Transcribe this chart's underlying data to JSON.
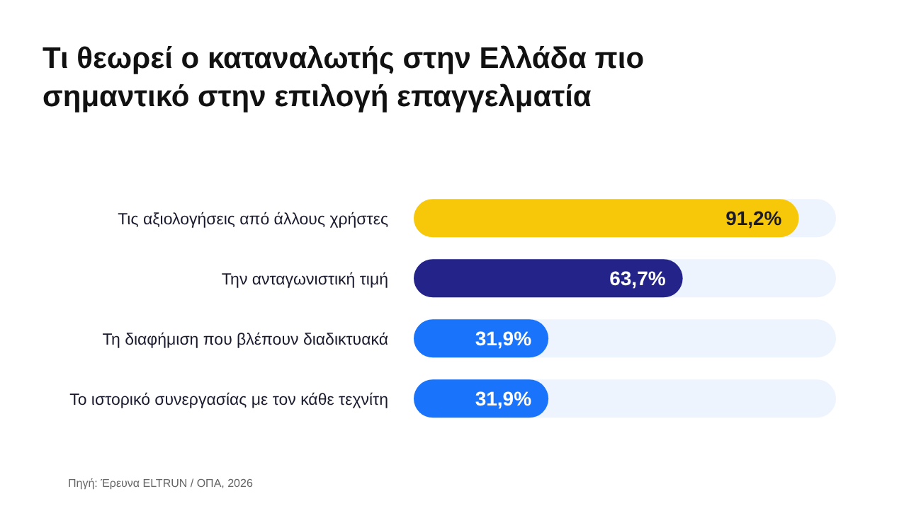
{
  "chart_data": {
    "type": "bar",
    "orientation": "horizontal",
    "title": "Τι θεωρεί ο καταναλωτής στην Ελλάδα πιο σημαντικό στην επιλογή επαγγελματία",
    "categories": [
      "Τις αξιολογήσεις από άλλους χρήστες",
      "Την ανταγωνιστική τιμή",
      "Τη διαφήμιση που βλέπουν διαδικτυακά",
      "Το ιστορικό συνεργασίας με τον κάθε τεχνίτη"
    ],
    "values": [
      91.2,
      63.7,
      31.9,
      31.9
    ],
    "colors": [
      "#f7c80a",
      "#23238a",
      "#1a73fb",
      "#1a73fb"
    ],
    "value_labels": [
      "91,2%",
      "63,7%",
      "31,9%",
      "31,9%"
    ],
    "xlim": [
      0,
      100
    ],
    "tick_labels": false,
    "grid": false,
    "legend": false,
    "annotations": [
      "Πηγή: Έρευνα ELTRUN / ΟΠΑ, 2026"
    ]
  }
}
